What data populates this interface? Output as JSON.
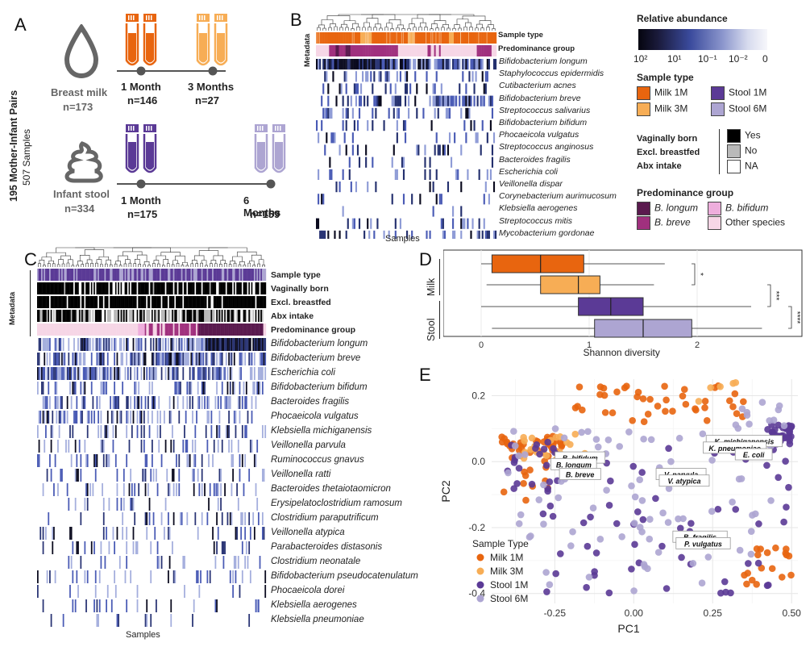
{
  "panelA": {
    "label": "A",
    "side_title": "195 Mother-Infant Pairs",
    "side_sub": "507 Samples",
    "milk": {
      "name": "Breast milk",
      "n": "n=173",
      "t1": "1 Month",
      "n1": "n=146",
      "t2": "3 Months",
      "n2": "n=27"
    },
    "stool": {
      "name": "Infant stool",
      "n": "n=334",
      "t1": "1 Month",
      "n1": "n=175",
      "t2": "6 Months",
      "n2": "n=159"
    }
  },
  "panelB": {
    "label": "B",
    "metadata_label": "Metadata",
    "row_sample_type": "Sample type",
    "row_predominance": "Predominance group",
    "xlabel": "Samples",
    "species": [
      "Bifidobacterium longum",
      "Staphylococcus epidermidis",
      "Cutibacterium acnes",
      "Bifidobacterium breve",
      "Streptococcus salivarius",
      "Bifidobacterium bifidum",
      "Phocaeicola vulgatus",
      "Streptococcus anginosus",
      "Bacteroides fragilis",
      "Escherichia coli",
      "Veillonella dispar",
      "Corynebacterium aurimucosum",
      "Klebsiella aerogenes",
      "Streptococcus mitis",
      "Mycobacterium gordonae"
    ]
  },
  "legend": {
    "abundance_title": "Relative abundance",
    "abundance_ticks": [
      "10²",
      "10¹",
      "10⁻¹",
      "10⁻²",
      "0"
    ],
    "sample_type_title": "Sample type",
    "sample_types": [
      {
        "label": "Milk  1M",
        "color": "#e8650f"
      },
      {
        "label": "Milk  3M",
        "color": "#f7ad55"
      },
      {
        "label": "Stool  1M",
        "color": "#5b3a96"
      },
      {
        "label": "Stool  6M",
        "color": "#ada5d2"
      }
    ],
    "binary_titles": [
      "Vaginally born",
      "Excl. breastfed",
      "Abx intake"
    ],
    "binary_items": [
      {
        "label": "Yes",
        "color": "#000000"
      },
      {
        "label": "No",
        "color": "#b9b9b9"
      },
      {
        "label": "NA",
        "color": "#ffffff"
      }
    ],
    "predominance_title": "Predominance group",
    "predominance": [
      {
        "label": "B. longum",
        "color": "#5a1a4e"
      },
      {
        "label": "B. bifidum",
        "color": "#eeaedc"
      },
      {
        "label": "B. breve",
        "color": "#a0307e"
      },
      {
        "label": "Other species",
        "color": "#f6d6e6"
      }
    ]
  },
  "panelC": {
    "label": "C",
    "metadata_label": "Metadata",
    "rows": [
      "Sample type",
      "Vaginally born",
      "Excl. breastfed",
      "Abx intake",
      "Predominance group"
    ],
    "xlabel": "Samples",
    "species": [
      "Bifidobacterium longum",
      "Bifidobacterium breve",
      "Escherichia coli",
      "Bifidobacterium bifidum",
      "Bacteroides fragilis",
      "Phocaeicola vulgatus",
      "Klebsiella michiganensis",
      "Veillonella parvula",
      "Ruminococcus gnavus",
      "Veillonella ratti",
      "Bacteroides thetaiotaomicron",
      "Erysipelatoclostridium ramosum",
      "Clostridium paraputrificum",
      "Veillonella atypica",
      "Parabacteroides distasonis",
      "Clostridium neonatale",
      "Bifidobacterium pseudocatenulatum",
      "Phocaeicola dorei",
      "Klebsiella aerogenes",
      "Klebsiella pneumoniae"
    ]
  },
  "panelD": {
    "label": "D",
    "xlabel": "Shannon diversity",
    "group_milk": "Milk",
    "group_stool": "Stool",
    "xticks": [
      "0",
      "1",
      "2"
    ],
    "boxes": [
      {
        "label": "1M",
        "group": "Milk",
        "color": "#e8650f",
        "min": 0.0,
        "q1": 0.1,
        "median": 0.55,
        "q3": 0.95,
        "max": 1.7
      },
      {
        "label": "3M",
        "group": "Milk",
        "color": "#f7ad55",
        "min": 0.05,
        "q1": 0.55,
        "median": 0.9,
        "q3": 1.1,
        "max": 1.6
      },
      {
        "label": "1M",
        "group": "Stool",
        "color": "#5b3a96",
        "min": 0.0,
        "q1": 0.9,
        "median": 1.2,
        "q3": 1.5,
        "max": 2.5
      },
      {
        "label": "6M",
        "group": "Stool",
        "color": "#ada5d2",
        "min": 0.1,
        "q1": 1.05,
        "median": 1.5,
        "q3": 1.95,
        "max": 2.6
      }
    ],
    "signif": [
      "*",
      "***",
      "****"
    ]
  },
  "chart_data": {
    "type": "scatter",
    "xlabel": "PC1",
    "ylabel": "PC2",
    "xlim": [
      -0.45,
      0.52
    ],
    "ylim": [
      -0.43,
      0.25
    ],
    "xticks": [
      "-0.25",
      "0.00",
      "0.25",
      "0.50"
    ],
    "yticks": [
      "0.2",
      "0.0",
      "-0.2",
      "-0.4"
    ],
    "legend_title": "Sample Type",
    "legend_position": "bottom-left",
    "series_names": [
      "Milk  1M",
      "Milk  3M",
      "Stool  1M",
      "Stool  6M"
    ],
    "species_labels": [
      {
        "text": "K. michiganensis",
        "x": 0.35,
        "y": 0.06
      },
      {
        "text": "K. pneumoniae",
        "x": 0.32,
        "y": 0.04
      },
      {
        "text": "E. coli",
        "x": 0.38,
        "y": 0.02
      },
      {
        "text": "B. bifidum",
        "x": -0.17,
        "y": 0.01
      },
      {
        "text": "B. longum",
        "x": -0.19,
        "y": -0.01
      },
      {
        "text": "B. breve",
        "x": -0.17,
        "y": -0.04
      },
      {
        "text": "V. parvula",
        "x": 0.15,
        "y": -0.04
      },
      {
        "text": "V. atypica",
        "x": 0.16,
        "y": -0.06
      },
      {
        "text": "B. fragilis",
        "x": 0.21,
        "y": -0.23
      },
      {
        "text": "P. vulgatus",
        "x": 0.22,
        "y": -0.25
      }
    ]
  }
}
